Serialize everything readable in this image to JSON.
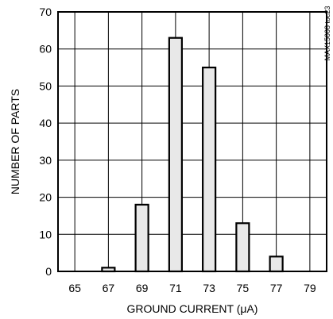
{
  "chart_data": {
    "type": "bar",
    "xlabel": "GROUND CURRENT (μA)",
    "ylabel": "NUMBER OF PARTS",
    "x_ticks": [
      65,
      67,
      69,
      71,
      73,
      75,
      77,
      79
    ],
    "y_ticks": [
      0,
      10,
      20,
      30,
      40,
      50,
      60,
      70
    ],
    "xlim": [
      64,
      80
    ],
    "ylim": [
      0,
      70
    ],
    "grid": true,
    "bars": [
      {
        "x": 67,
        "value": 1
      },
      {
        "x": 69,
        "value": 18
      },
      {
        "x": 71,
        "value": 63
      },
      {
        "x": 73,
        "value": 55
      },
      {
        "x": 75,
        "value": 13
      },
      {
        "x": 77,
        "value": 4
      }
    ],
    "bar_fill": "#e8e8e8",
    "bar_stroke": "#000000"
  },
  "watermark": "MAX15008 toc23"
}
